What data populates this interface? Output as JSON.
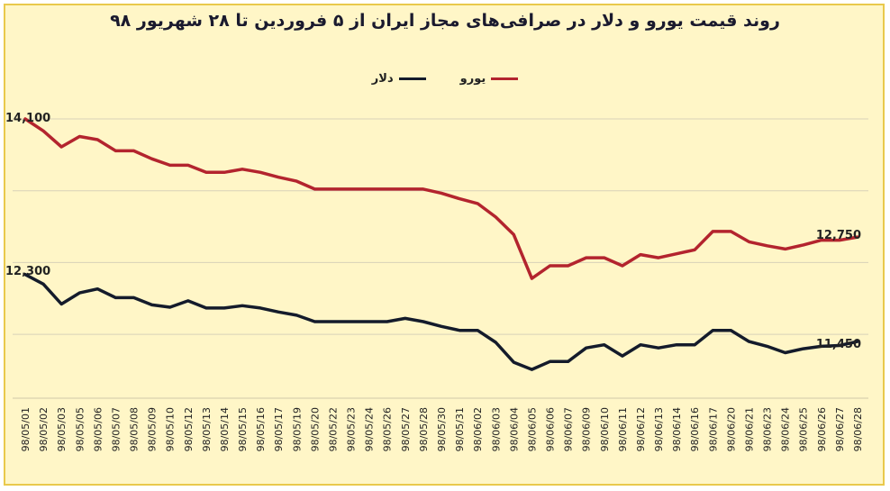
{
  "chart_data": {
    "type": "line",
    "title": "روند قیمت یورو و دلار در صرافی‌های مجاز ایران از ۵ فروردین تا ۲۸ شهریور ۹۸",
    "xlabel": "",
    "ylabel": "",
    "ylim": [
      10600,
      14800
    ],
    "grid": true,
    "legend_position": "top-center",
    "x": [
      "98/05/01",
      "98/05/02",
      "98/05/03",
      "98/05/05",
      "98/05/06",
      "98/05/07",
      "98/05/08",
      "98/05/09",
      "98/05/10",
      "98/05/12",
      "98/05/13",
      "98/05/14",
      "98/05/15",
      "98/05/16",
      "98/05/17",
      "98/05/19",
      "98/05/20",
      "98/05/22",
      "98/05/23",
      "98/05/24",
      "98/05/26",
      "98/05/27",
      "98/05/28",
      "98/05/30",
      "98/05/31",
      "98/06/02",
      "98/06/03",
      "98/06/04",
      "98/06/05",
      "98/06/06",
      "98/06/07",
      "98/06/09",
      "98/06/10",
      "98/06/11",
      "98/06/12",
      "98/06/13",
      "98/06/14",
      "98/06/16",
      "98/06/17",
      "98/06/20",
      "98/06/21",
      "98/06/23",
      "98/06/24",
      "98/06/25",
      "98/06/26",
      "98/06/27",
      "98/06/28"
    ],
    "series": [
      {
        "name": "یورو",
        "color": "#b3242e",
        "values": [
          14100,
          13950,
          13750,
          13880,
          13840,
          13700,
          13700,
          13600,
          13520,
          13520,
          13430,
          13430,
          13470,
          13430,
          13370,
          13320,
          13220,
          13220,
          13220,
          13220,
          13220,
          13220,
          13220,
          13170,
          13100,
          13040,
          12870,
          12650,
          12100,
          12260,
          12260,
          12360,
          12360,
          12260,
          12400,
          12360,
          12410,
          12460,
          12690,
          12690,
          12560,
          12510,
          12470,
          12520,
          12580,
          12580,
          12620
        ]
      },
      {
        "name": "دلار",
        "color": "#141b2b",
        "values": [
          12150,
          12030,
          11780,
          11920,
          11970,
          11860,
          11860,
          11770,
          11740,
          11820,
          11730,
          11730,
          11760,
          11730,
          11680,
          11640,
          11560,
          11560,
          11560,
          11560,
          11560,
          11600,
          11560,
          11500,
          11450,
          11450,
          11300,
          11050,
          10960,
          11060,
          11060,
          11230,
          11270,
          11130,
          11270,
          11230,
          11270,
          11270,
          11450,
          11450,
          11310,
          11250,
          11170,
          11220,
          11250,
          11260,
          11310
        ]
      }
    ],
    "data_labels": [
      {
        "text": "14,100"
      },
      {
        "text": "12,750"
      },
      {
        "text": "12,300"
      },
      {
        "text": "11,450"
      }
    ]
  }
}
